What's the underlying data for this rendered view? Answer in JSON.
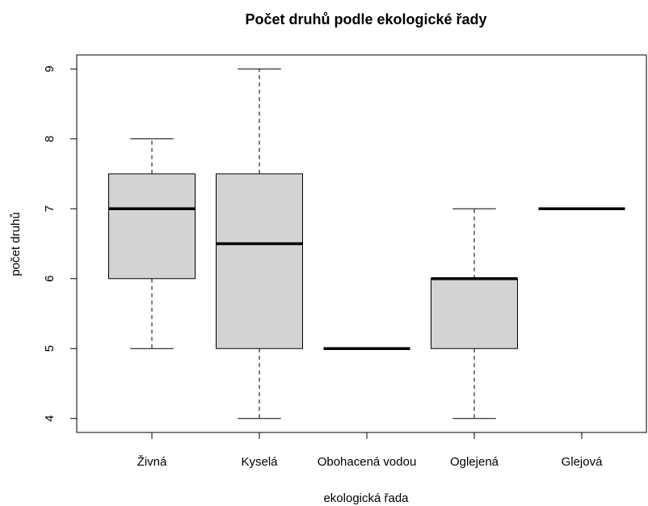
{
  "chart_data": {
    "type": "box",
    "title": "Počet druhů podle ekologické řady",
    "x_label": "ekologická řada",
    "y_label": "počet druhů",
    "categories": [
      "Živná",
      "Kyselá",
      "Obohacená vodou",
      "Oglejená",
      "Glejová"
    ],
    "series": [
      {
        "color": "#d3d3d3",
        "min": [
          5,
          4,
          5,
          4,
          7
        ],
        "q1": [
          6,
          5,
          5,
          5,
          7
        ],
        "median": [
          7,
          6.5,
          5,
          6,
          7
        ],
        "q3": [
          7.5,
          7.5,
          5,
          6,
          7
        ],
        "max": [
          8,
          9,
          5,
          7,
          7
        ]
      }
    ],
    "ylim": [
      3.8,
      9.2
    ],
    "yticks": [
      4,
      5,
      6,
      7,
      8,
      9
    ]
  }
}
